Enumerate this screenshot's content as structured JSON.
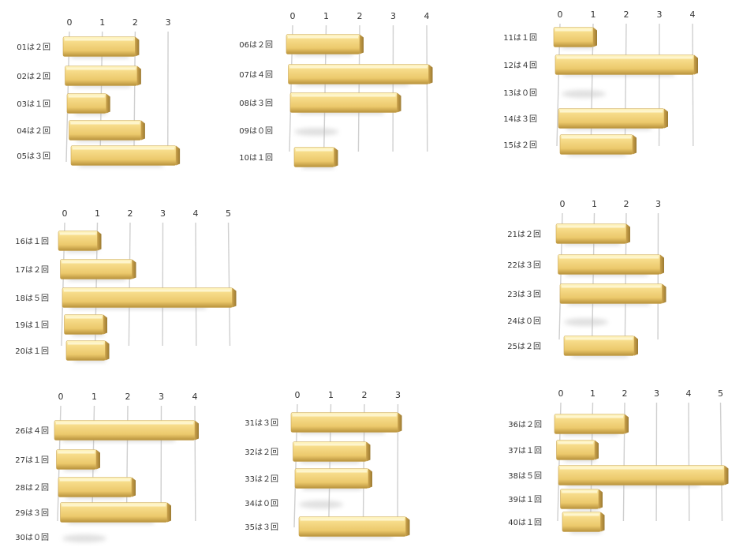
{
  "colors": {
    "bar_light": "#fff0a8",
    "bar_mid": "#f0d47a",
    "bar_dark": "#b8923c",
    "bar_end": "#a8843a",
    "gridline": "#cfcfcf"
  },
  "chart_data": [
    {
      "type": "bar",
      "orientation": "horizontal",
      "xlim": [
        0,
        3
      ],
      "ticks": [
        "0",
        "1",
        "2",
        "3"
      ],
      "categories": [
        "01は２回",
        "02は２回",
        "03は１回",
        "04は２回",
        "05は３回"
      ],
      "values": [
        2,
        2,
        1,
        2,
        3
      ]
    },
    {
      "type": "bar",
      "orientation": "horizontal",
      "xlim": [
        0,
        4
      ],
      "ticks": [
        "0",
        "1",
        "2",
        "3",
        "4"
      ],
      "categories": [
        "06は２回",
        "07は４回",
        "08は３回",
        "09は０回",
        "10は１回"
      ],
      "values": [
        2,
        4,
        3,
        0,
        1
      ]
    },
    {
      "type": "bar",
      "orientation": "horizontal",
      "xlim": [
        0,
        4
      ],
      "ticks": [
        "0",
        "1",
        "2",
        "3",
        "4"
      ],
      "categories": [
        "11は１回",
        "12は４回",
        "13は０回",
        "14は３回",
        "15は２回"
      ],
      "values": [
        1,
        4,
        0,
        3,
        2
      ]
    },
    {
      "type": "bar",
      "orientation": "horizontal",
      "xlim": [
        0,
        5
      ],
      "ticks": [
        "0",
        "1",
        "2",
        "3",
        "4",
        "5"
      ],
      "categories": [
        "16は１回",
        "17は２回",
        "18は５回",
        "19は１回",
        "20は１回"
      ],
      "values": [
        1,
        2,
        5,
        1,
        1
      ]
    },
    {
      "type": "bar",
      "orientation": "horizontal",
      "xlim": [
        0,
        3
      ],
      "ticks": [
        "0",
        "1",
        "2",
        "3"
      ],
      "categories": [
        "21は２回",
        "22は３回",
        "23は３回",
        "24は０回",
        "25は２回"
      ],
      "values": [
        2,
        3,
        3,
        0,
        2
      ]
    },
    {
      "type": "bar",
      "orientation": "horizontal",
      "xlim": [
        0,
        4
      ],
      "ticks": [
        "0",
        "1",
        "2",
        "3",
        "4"
      ],
      "categories": [
        "26は４回",
        "27は１回",
        "28は２回",
        "29は３回",
        "30は０回"
      ],
      "values": [
        4,
        1,
        2,
        3,
        0
      ]
    },
    {
      "type": "bar",
      "orientation": "horizontal",
      "xlim": [
        0,
        3
      ],
      "ticks": [
        "0",
        "1",
        "2",
        "3"
      ],
      "categories": [
        "31は３回",
        "32は２回",
        "33は２回",
        "34は０回",
        "35は３回"
      ],
      "values": [
        3,
        2,
        2,
        0,
        3
      ]
    },
    {
      "type": "bar",
      "orientation": "horizontal",
      "xlim": [
        0,
        5
      ],
      "ticks": [
        "0",
        "1",
        "2",
        "3",
        "4",
        "5"
      ],
      "categories": [
        "36は２回",
        "37は１回",
        "38は５回",
        "39は１回",
        "40は１回"
      ],
      "values": [
        2,
        1,
        5,
        1,
        1
      ]
    }
  ]
}
